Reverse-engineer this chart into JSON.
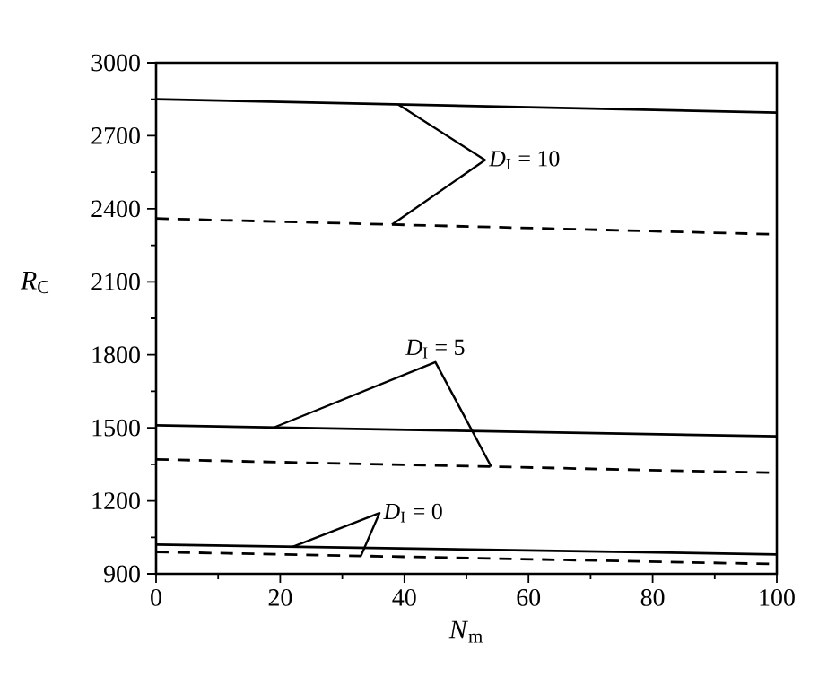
{
  "chart_data": {
    "type": "line",
    "xlabel": "*N*$_{m}$",
    "ylabel": "*R*$_{C}$",
    "x": [
      0,
      100
    ],
    "series": [
      {
        "color": "#000000",
        "line_style": "solid",
        "values": [
          2850,
          2795
        ]
      },
      {
        "color": "#000000",
        "line_style": "dashed",
        "values": [
          2360,
          2295
        ]
      },
      {
        "color": "#000000",
        "line_style": "solid",
        "values": [
          1510,
          1465
        ]
      },
      {
        "color": "#000000",
        "line_style": "dashed",
        "values": [
          1370,
          1315
        ]
      },
      {
        "color": "#000000",
        "line_style": "solid",
        "values": [
          1020,
          980
        ]
      },
      {
        "color": "#000000",
        "line_style": "dashed",
        "values": [
          990,
          940
        ]
      }
    ],
    "xlim": [
      0,
      100
    ],
    "xticks": [
      0,
      20,
      40,
      60,
      80,
      100
    ],
    "ylim": [
      900,
      3000
    ],
    "yticks": [
      900,
      1200,
      1500,
      1800,
      2100,
      2400,
      2700,
      3000
    ],
    "marker": "none",
    "annotations": [
      "*D*$_{I}$ = 10",
      "*D*$_{I}$ = 5",
      "*D*$_{I}$ = 0"
    ]
  }
}
